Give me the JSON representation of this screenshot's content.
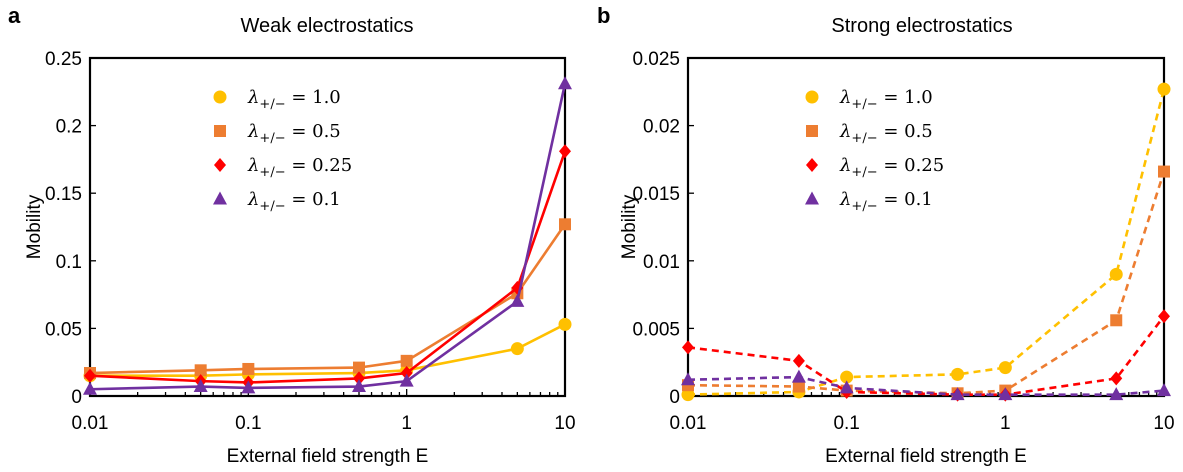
{
  "chart_data": [
    {
      "type": "line",
      "panel_label": "a",
      "title": "Weak electrostatics",
      "xlabel": "External field strength E",
      "ylabel": "Mobility",
      "xscale": "log",
      "xlim": [
        0.01,
        10
      ],
      "ylim": [
        0,
        0.25
      ],
      "x_ticks": [
        "0.01",
        "0.1",
        "1",
        "10"
      ],
      "y_ticks": [
        "0",
        "0.05",
        "0.1",
        "0.15",
        "0.2",
        "0.25"
      ],
      "line_style": "solid",
      "legend_position": "upper-left",
      "x": [
        0.01,
        0.05,
        0.1,
        0.5,
        1,
        5,
        10
      ],
      "series": [
        {
          "name": "λ+/− = 1.0",
          "marker": "circle",
          "color": "#FFC000",
          "values": [
            0.015,
            0.015,
            0.016,
            0.017,
            0.019,
            0.035,
            0.053
          ]
        },
        {
          "name": "λ+/− = 0.5",
          "marker": "square",
          "color": "#ED7D31",
          "values": [
            0.017,
            0.019,
            0.02,
            0.021,
            0.026,
            0.076,
            0.127
          ]
        },
        {
          "name": "λ+/− = 0.25",
          "marker": "diamond",
          "color": "#FF0000",
          "values": [
            0.015,
            0.011,
            0.01,
            0.013,
            0.017,
            0.08,
            0.181
          ]
        },
        {
          "name": "λ+/− = 0.1",
          "marker": "triangle",
          "color": "#7030A0",
          "values": [
            0.005,
            0.007,
            0.006,
            0.007,
            0.011,
            0.07,
            0.231
          ]
        }
      ]
    },
    {
      "type": "line",
      "panel_label": "b",
      "title": "Strong electrostatics",
      "xlabel": "External field strength E",
      "ylabel": "Mobility",
      "xscale": "log",
      "xlim": [
        0.01,
        10
      ],
      "ylim": [
        0,
        0.025
      ],
      "x_ticks": [
        "0.01",
        "0.1",
        "1",
        "10"
      ],
      "y_ticks": [
        "0",
        "0.005",
        "0.01",
        "0.015",
        "0.02",
        "0.025"
      ],
      "line_style": "dashed",
      "legend_position": "upper-left",
      "x": [
        0.01,
        0.05,
        0.1,
        0.5,
        1,
        5,
        10
      ],
      "series": [
        {
          "name": "λ+/− = 1.0",
          "marker": "circle",
          "color": "#FFC000",
          "values": [
            0.0001,
            0.0003,
            0.0014,
            0.0016,
            0.0021,
            0.009,
            0.0227
          ]
        },
        {
          "name": "λ+/− = 0.5",
          "marker": "square",
          "color": "#ED7D31",
          "values": [
            0.0008,
            0.0007,
            0.0004,
            0.0002,
            0.0004,
            0.0056,
            0.0166
          ]
        },
        {
          "name": "λ+/− = 0.25",
          "marker": "diamond",
          "color": "#FF0000",
          "values": [
            0.0036,
            0.0026,
            0.0003,
            0.0001,
            0.0001,
            0.0013,
            0.0059
          ]
        },
        {
          "name": "λ+/− = 0.1",
          "marker": "triangle",
          "color": "#7030A0",
          "values": [
            0.0012,
            0.0014,
            0.0006,
            0.0001,
            0.0001,
            0.0001,
            0.0004
          ]
        }
      ]
    }
  ]
}
